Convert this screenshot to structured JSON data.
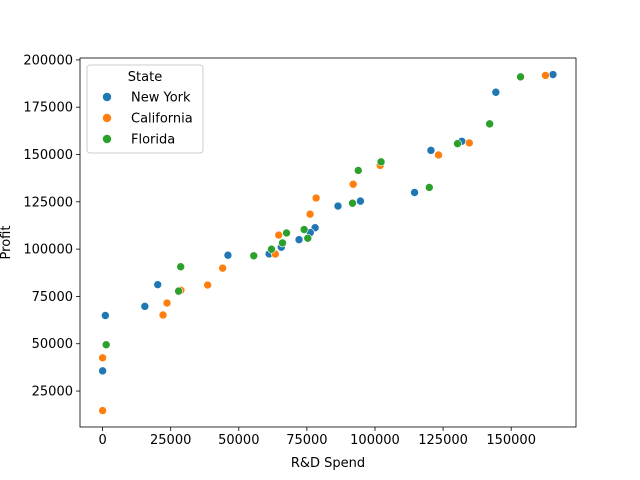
{
  "chart_data": {
    "type": "scatter",
    "title": "",
    "xlabel": "R&D Spend",
    "ylabel": "Profit",
    "xlim": [
      -8300,
      173800
    ],
    "ylim": [
      6000,
      201000
    ],
    "x_ticks": [
      0,
      25000,
      50000,
      75000,
      100000,
      125000,
      150000
    ],
    "x_tick_labels": [
      "0",
      "25000",
      "50000",
      "75000",
      "100000",
      "125000",
      "150000"
    ],
    "y_ticks": [
      25000,
      50000,
      75000,
      100000,
      125000,
      150000,
      175000,
      200000
    ],
    "y_tick_labels": [
      "25000",
      "50000",
      "75000",
      "100000",
      "125000",
      "150000",
      "175000",
      "200000"
    ],
    "grid": false,
    "legend": {
      "title": "State",
      "placement": "top-left"
    },
    "series": [
      {
        "name": "New York",
        "color": "#1f77b4",
        "points": [
          [
            165349,
            192262
          ],
          [
            144372,
            182902
          ],
          [
            131877,
            156991
          ],
          [
            120543,
            152212
          ],
          [
            94657,
            125371
          ],
          [
            114524,
            129917
          ],
          [
            86419,
            122777
          ],
          [
            78014,
            111314
          ],
          [
            76254,
            108734
          ],
          [
            72108,
            105008
          ],
          [
            65605,
            101005
          ],
          [
            61136,
            97484
          ],
          [
            46014,
            96780
          ],
          [
            20230,
            81230
          ],
          [
            15506,
            69759
          ],
          [
            1000,
            64927
          ],
          [
            0,
            35673
          ]
        ]
      },
      {
        "name": "California",
        "color": "#ff7f0e",
        "points": [
          [
            162597,
            191792
          ],
          [
            134615,
            156123
          ],
          [
            123335,
            149760
          ],
          [
            101913,
            144260
          ],
          [
            91992,
            134307
          ],
          [
            78389,
            126993
          ],
          [
            76169,
            118474
          ],
          [
            64665,
            107404
          ],
          [
            63409,
            97427
          ],
          [
            44070,
            89949
          ],
          [
            38558,
            81006
          ],
          [
            28754,
            78240
          ],
          [
            23641,
            71499
          ],
          [
            22178,
            65201
          ],
          [
            0,
            42560
          ],
          [
            0,
            14681
          ]
        ]
      },
      {
        "name": "Florida",
        "color": "#2ca02c",
        "points": [
          [
            153442,
            191050
          ],
          [
            142107,
            166188
          ],
          [
            130298,
            155753
          ],
          [
            119944,
            132602
          ],
          [
            102227,
            146122
          ],
          [
            93864,
            141586
          ],
          [
            91749,
            124267
          ],
          [
            73995,
            110353
          ],
          [
            67533,
            108552
          ],
          [
            75328,
            105734
          ],
          [
            66051,
            103282
          ],
          [
            61994,
            99937
          ],
          [
            55494,
            96479
          ],
          [
            28664,
            90708
          ],
          [
            27893,
            77799
          ],
          [
            1316,
            49491
          ]
        ]
      }
    ]
  }
}
